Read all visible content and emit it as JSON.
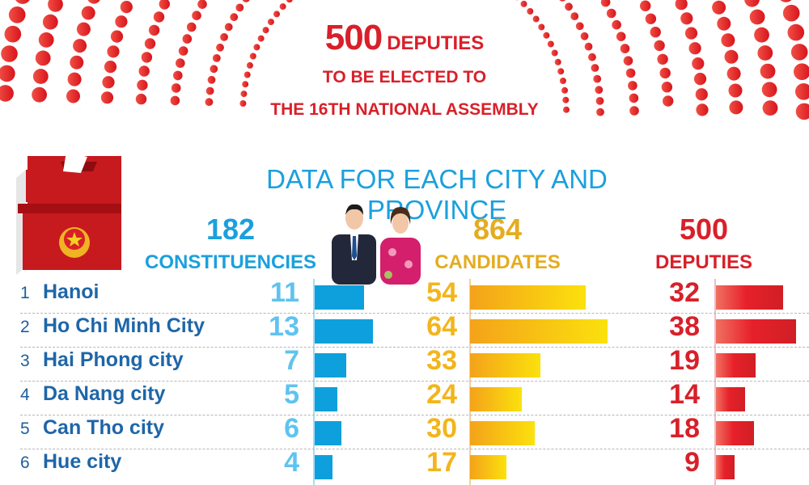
{
  "header": {
    "count": "500",
    "count_label": "DEPUTIES",
    "line2": "TO BE ELECTED TO",
    "line3": "THE 16TH NATIONAL ASSEMBLY"
  },
  "subtitle": "DATA FOR EACH CITY AND PROVINCE",
  "colors": {
    "blue": "#1ba0dd",
    "yellow": "#e5ac20",
    "red": "#d8202a",
    "name": "#1e66a8"
  },
  "totals": {
    "constituencies": {
      "value": "182",
      "label": "CONSTITUENCIES"
    },
    "candidates": {
      "value": "864",
      "label": "CANDIDATES"
    },
    "deputies": {
      "value": "500",
      "label": "DEPUTIES"
    }
  },
  "rows": [
    {
      "rank": "1",
      "name": "Hanoi",
      "constituencies": "11",
      "candidates": "54",
      "deputies": "32"
    },
    {
      "rank": "2",
      "name": "Ho Chi Minh City",
      "constituencies": "13",
      "candidates": "64",
      "deputies": "38"
    },
    {
      "rank": "3",
      "name": "Hai Phong city",
      "constituencies": "7",
      "candidates": "33",
      "deputies": "19"
    },
    {
      "rank": "4",
      "name": "Da Nang city",
      "constituencies": "5",
      "candidates": "24",
      "deputies": "14"
    },
    {
      "rank": "5",
      "name": "Can Tho city",
      "constituencies": "6",
      "candidates": "30",
      "deputies": "18"
    },
    {
      "rank": "6",
      "name": "Hue city",
      "constituencies": "4",
      "candidates": "17",
      "deputies": "9"
    }
  ],
  "chart_data": {
    "type": "bar",
    "title": "DATA FOR EACH CITY AND PROVINCE",
    "categories": [
      "Hanoi",
      "Ho Chi Minh City",
      "Hai Phong city",
      "Da Nang city",
      "Can Tho city",
      "Hue city"
    ],
    "series": [
      {
        "name": "Constituencies",
        "total": 182,
        "values": [
          11,
          13,
          7,
          5,
          6,
          4
        ]
      },
      {
        "name": "Candidates",
        "total": 864,
        "values": [
          54,
          64,
          33,
          24,
          30,
          17
        ]
      },
      {
        "name": "Deputies",
        "total": 500,
        "values": [
          32,
          38,
          19,
          14,
          18,
          9
        ]
      }
    ],
    "orientation": "horizontal",
    "grid": false
  }
}
